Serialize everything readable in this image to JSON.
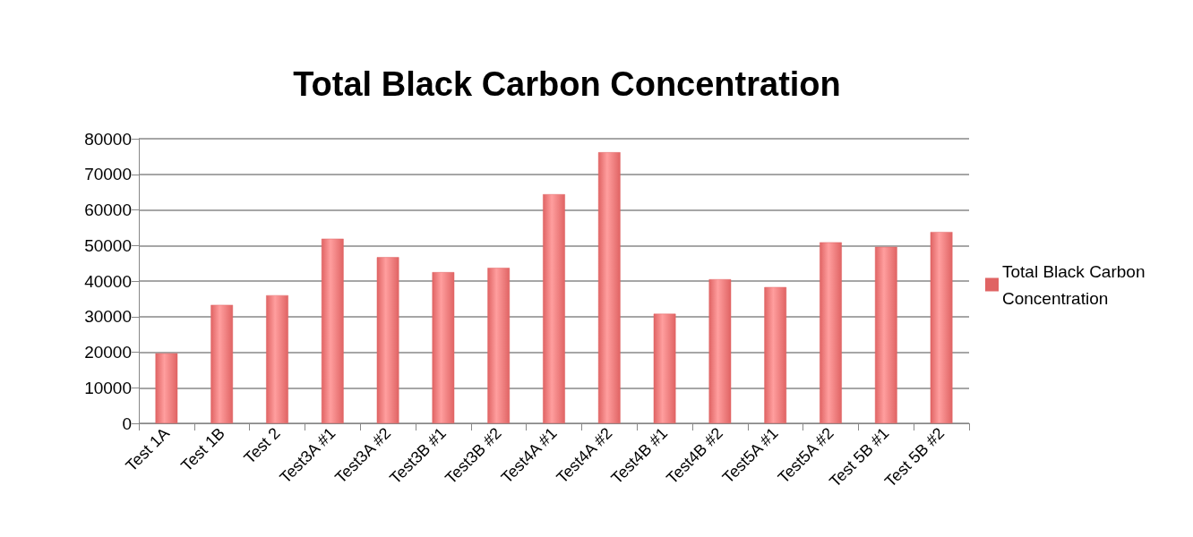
{
  "chart_data": {
    "type": "bar",
    "title": "Total Black Carbon Concentration",
    "categories": [
      "Test 1A",
      "Test 1B",
      "Test 2",
      "Test3A #1",
      "Test3A #2",
      "Test3B #1",
      "Test3B #2",
      "Test4A #1",
      "Test4A #2",
      "Test4B #1",
      "Test4B #2",
      "Test5A #1",
      "Test5A #2",
      "Test 5B #1",
      "Test 5B #2"
    ],
    "series": [
      {
        "name": "Total Black Carbon Concentration",
        "color": "#e06464",
        "values": [
          19700,
          33300,
          36000,
          51900,
          46700,
          42500,
          43700,
          64400,
          76200,
          30800,
          40500,
          38300,
          50900,
          49600,
          53800
        ]
      }
    ],
    "ylim": [
      0,
      80000
    ],
    "yticks": [
      0,
      10000,
      20000,
      30000,
      40000,
      50000,
      60000,
      70000,
      80000
    ],
    "grid": "y",
    "legend": "right"
  }
}
